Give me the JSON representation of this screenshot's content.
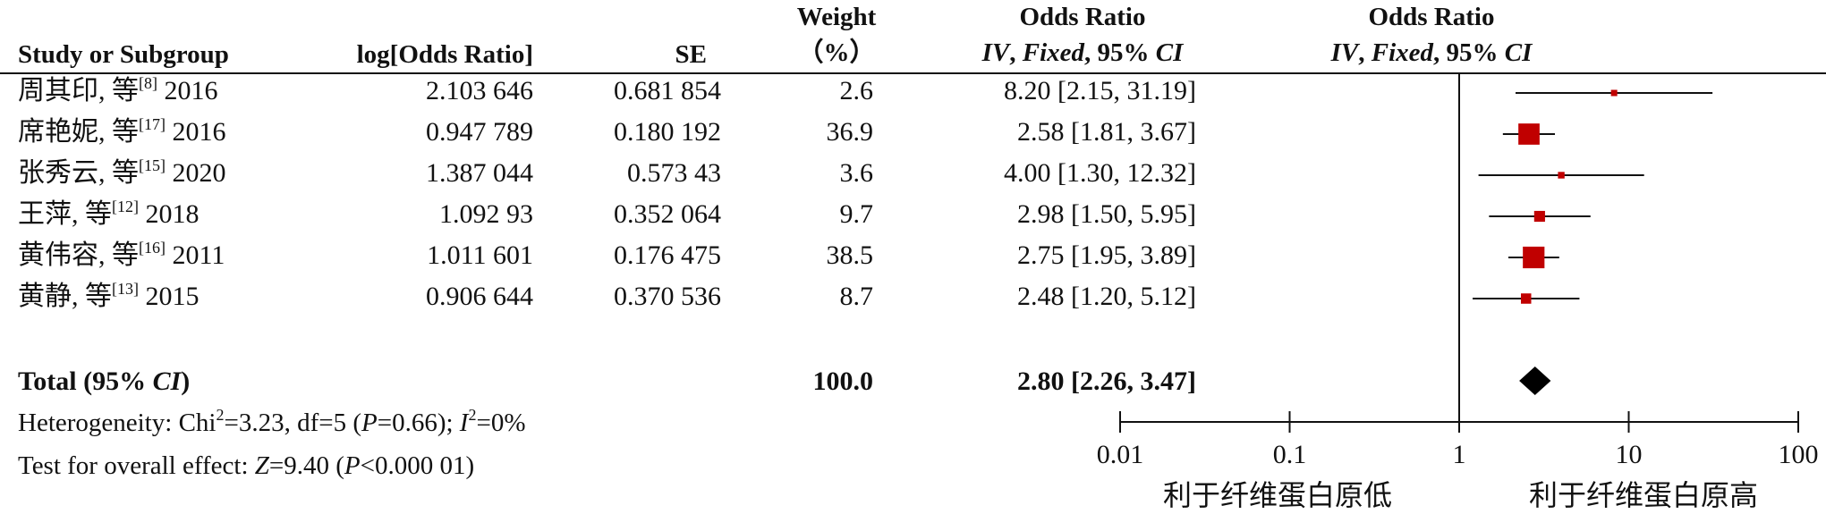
{
  "header": {
    "study": "Study or Subgroup",
    "logor": "log[Odds Ratio]",
    "se": "SE",
    "weight_line1": "Weight",
    "weight_line2": "（%）",
    "or_line1": "Odds Ratio",
    "or_line2_a": "IV",
    "or_line2_b": ", ",
    "or_line2_c": "Fixed",
    "or_line2_d": ", 95% ",
    "or_line2_e": "CI",
    "plot_line1": "Odds Ratio",
    "plot_line2_a": "IV",
    "plot_line2_b": ", ",
    "plot_line2_c": "Fixed",
    "plot_line2_d": ", 95% ",
    "plot_line2_e": "CI"
  },
  "rows": [
    {
      "name": "周其印, 等",
      "ref": "[8]",
      "year": " 2016",
      "logor": "2.103 646",
      "se": "0.681 854",
      "weight": "2.6",
      "ci": "8.20 [2.15, 31.19]"
    },
    {
      "name": "席艳妮, 等",
      "ref": "[17]",
      "year": " 2016",
      "logor": "0.947 789",
      "se": "0.180 192",
      "weight": "36.9",
      "ci": "2.58 [1.81, 3.67]"
    },
    {
      "name": "张秀云, 等",
      "ref": "[15]",
      "year": " 2020",
      "logor": "1.387 044",
      "se": "0.573 43",
      "weight": "3.6",
      "ci": "4.00 [1.30, 12.32]"
    },
    {
      "name": "王萍, 等",
      "ref": "[12]",
      "year": " 2018",
      "logor": "1.092 93",
      "se": "0.352 064",
      "weight": "9.7",
      "ci": "2.98 [1.50, 5.95]"
    },
    {
      "name": "黄伟容, 等",
      "ref": "[16]",
      "year": " 2011",
      "logor": "1.011 601",
      "se": "0.176 475",
      "weight": "38.5",
      "ci": "2.75 [1.95, 3.89]"
    },
    {
      "name": "黄静, 等",
      "ref": "[13]",
      "year": " 2015",
      "logor": "0.906 644",
      "se": "0.370 536",
      "weight": "8.7",
      "ci": "2.48 [1.20, 5.12]"
    }
  ],
  "total": {
    "label_a": "Total (95% ",
    "label_b": "CI",
    "label_c": ")",
    "weight": "100.0",
    "ci": "2.80 [2.26, 3.47]"
  },
  "footer": {
    "het_a": "Heterogeneity: Chi",
    "het_sup": "2",
    "het_b": "=3.23, df=5 (",
    "het_p": "P",
    "het_c": "=0.66); ",
    "het_i": "I",
    "het_isup": "2",
    "het_d": "=0%",
    "test_a": "Test for overall effect: ",
    "test_z": "Z",
    "test_b": "=9.40 (",
    "test_p": "P",
    "test_c": "<0.000 01)"
  },
  "colors": {
    "marker": "#c00000",
    "line": "#111111",
    "diamond": "#000000"
  },
  "chart_data": {
    "type": "forest",
    "xscale": "log",
    "xlim": [
      0.01,
      100
    ],
    "ticks": [
      0.01,
      0.1,
      1,
      10,
      100
    ],
    "tick_labels": [
      "0.01",
      "0.1",
      "1",
      "10",
      "100"
    ],
    "left_label": "利于纤维蛋白原低",
    "right_label": "利于纤维蛋白原高",
    "studies": [
      {
        "or": 8.2,
        "lo": 2.15,
        "hi": 31.19,
        "weight": 2.6
      },
      {
        "or": 2.58,
        "lo": 1.81,
        "hi": 3.67,
        "weight": 36.9
      },
      {
        "or": 4.0,
        "lo": 1.3,
        "hi": 12.32,
        "weight": 3.6
      },
      {
        "or": 2.98,
        "lo": 1.5,
        "hi": 5.95,
        "weight": 9.7
      },
      {
        "or": 2.75,
        "lo": 1.95,
        "hi": 3.89,
        "weight": 38.5
      },
      {
        "or": 2.48,
        "lo": 1.2,
        "hi": 5.12,
        "weight": 8.7
      }
    ],
    "pooled": {
      "or": 2.8,
      "lo": 2.26,
      "hi": 3.47
    }
  }
}
